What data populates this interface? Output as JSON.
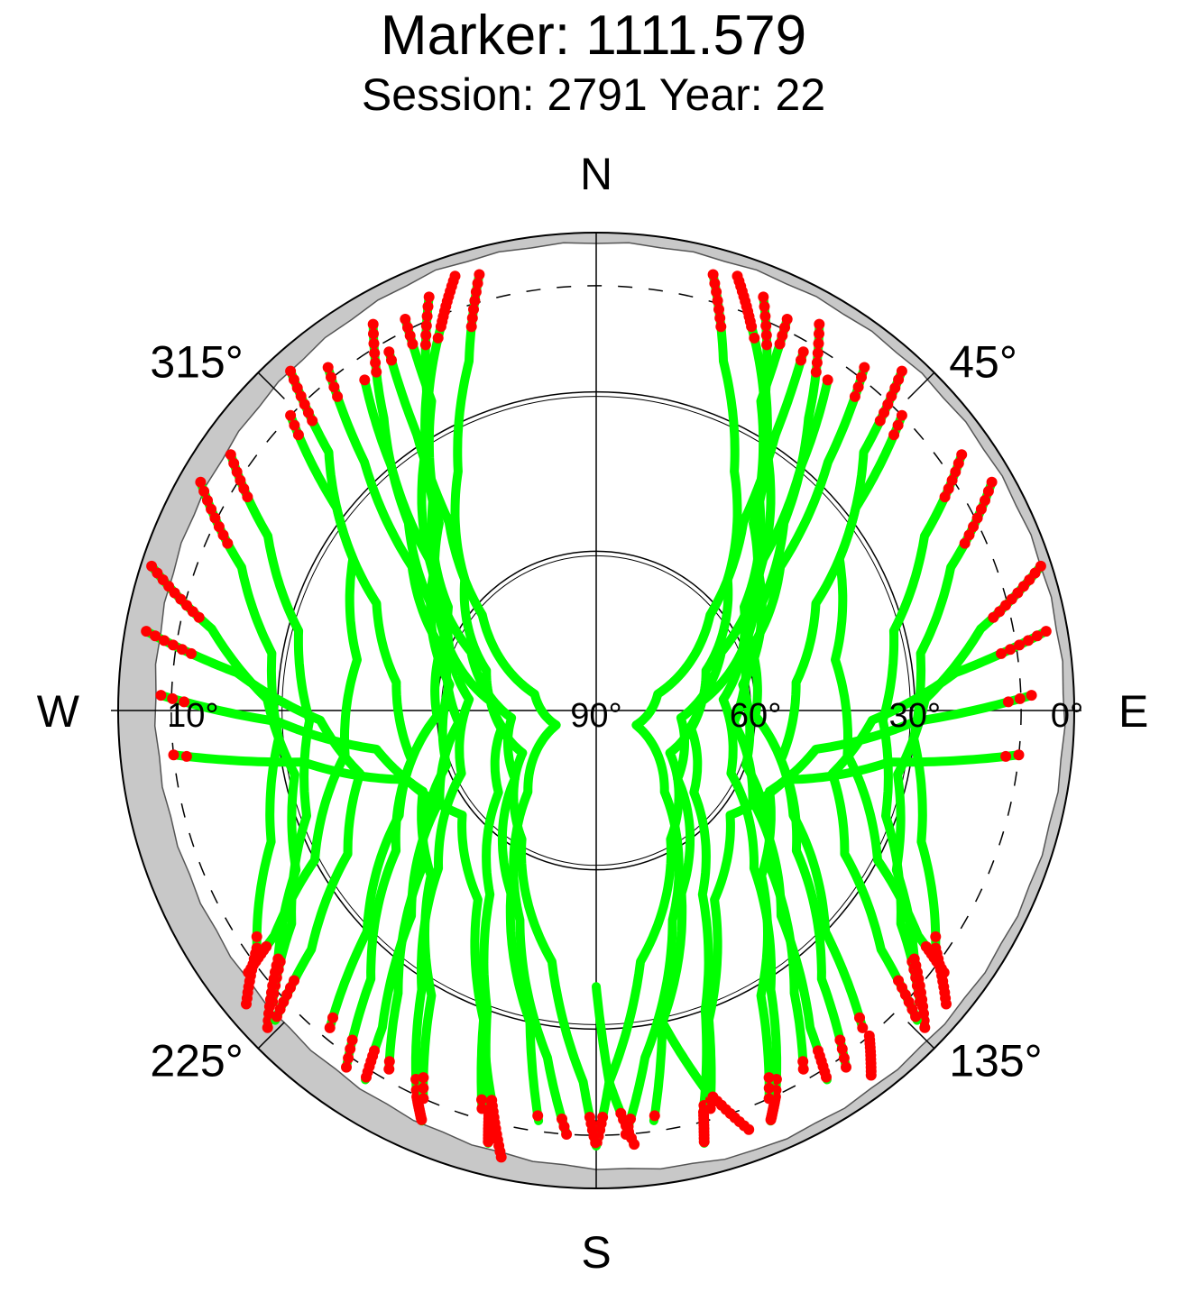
{
  "chart_data": {
    "type": "polar-skyplot",
    "title": "Marker: 1111.579",
    "subtitle": "Session: 2791 Year: 22",
    "cardinals": {
      "north": "N",
      "south": "S",
      "east": "E",
      "west": "W"
    },
    "azimuth_labels": [
      {
        "azimuth": 45,
        "text": "45°"
      },
      {
        "azimuth": 135,
        "text": "135°"
      },
      {
        "azimuth": 225,
        "text": "225°"
      },
      {
        "azimuth": 315,
        "text": "315°"
      }
    ],
    "elevation_labels": [
      {
        "elevation": 0,
        "text": "0°"
      },
      {
        "elevation": 30,
        "text": "30°"
      },
      {
        "elevation": 60,
        "text": "60°"
      },
      {
        "elevation": 90,
        "text": "90°"
      },
      {
        "elevation": 10,
        "text": "10°"
      }
    ],
    "elevation_circles": [
      30,
      60
    ],
    "cutoff_elevation": 10,
    "colors": {
      "track": "#00ff00",
      "low": "#ff0000",
      "mask": "#c8c8c8",
      "axis": "#000000"
    },
    "series": [
      {
        "points": [
          [
            15,
            5
          ],
          [
            20,
            20
          ],
          [
            30,
            38
          ],
          [
            45,
            55
          ],
          [
            70,
            68
          ],
          [
            100,
            72
          ],
          [
            130,
            66
          ],
          [
            150,
            50
          ],
          [
            160,
            30
          ],
          [
            165,
            12
          ],
          [
            166,
            6
          ]
        ]
      },
      {
        "points": [
          [
            22,
            6
          ],
          [
            28,
            22
          ],
          [
            38,
            40
          ],
          [
            55,
            56
          ],
          [
            85,
            66
          ],
          [
            115,
            62
          ],
          [
            135,
            48
          ],
          [
            148,
            28
          ],
          [
            155,
            10
          ],
          [
            157,
            6
          ]
        ]
      },
      {
        "points": [
          [
            30,
            6
          ],
          [
            36,
            22
          ],
          [
            45,
            40
          ],
          [
            60,
            56
          ],
          [
            85,
            70
          ],
          [
            120,
            74
          ],
          [
            150,
            62
          ],
          [
            170,
            42
          ],
          [
            178,
            20
          ],
          [
            180,
            8
          ]
        ]
      },
      {
        "points": [
          [
            38,
            8
          ],
          [
            43,
            26
          ],
          [
            52,
            46
          ],
          [
            70,
            60
          ],
          [
            95,
            64
          ],
          [
            120,
            56
          ],
          [
            138,
            38
          ],
          [
            146,
            18
          ],
          [
            148,
            8
          ]
        ]
      },
      {
        "points": [
          [
            46,
            10
          ],
          [
            52,
            28
          ],
          [
            64,
            44
          ],
          [
            82,
            52
          ],
          [
            105,
            54
          ],
          [
            125,
            44
          ],
          [
            140,
            24
          ],
          [
            145,
            8
          ]
        ]
      },
      {
        "points": [
          [
            55,
            6
          ],
          [
            62,
            20
          ],
          [
            75,
            32
          ],
          [
            92,
            36
          ],
          [
            110,
            32
          ],
          [
            125,
            20
          ],
          [
            132,
            8
          ]
        ]
      },
      {
        "points": [
          [
            60,
            4
          ],
          [
            68,
            18
          ],
          [
            80,
            28
          ],
          [
            95,
            30
          ],
          [
            112,
            24
          ],
          [
            125,
            12
          ],
          [
            130,
            4
          ]
        ]
      },
      {
        "points": [
          [
            72,
            2
          ],
          [
            78,
            16
          ],
          [
            88,
            28
          ],
          [
            102,
            32
          ],
          [
            118,
            26
          ],
          [
            128,
            14
          ],
          [
            134,
            4
          ]
        ]
      },
      {
        "points": [
          [
            80,
            4
          ],
          [
            84,
            22
          ],
          [
            92,
            38
          ],
          [
            105,
            44
          ],
          [
            120,
            36
          ],
          [
            130,
            20
          ],
          [
            134,
            6
          ]
        ]
      },
      {
        "points": [
          [
            88,
            8
          ],
          [
            92,
            30
          ],
          [
            100,
            48
          ],
          [
            115,
            54
          ],
          [
            135,
            46
          ],
          [
            150,
            28
          ],
          [
            156,
            10
          ]
        ]
      },
      {
        "points": [
          [
            96,
            10
          ],
          [
            100,
            34
          ],
          [
            110,
            52
          ],
          [
            128,
            58
          ],
          [
            148,
            48
          ],
          [
            160,
            28
          ],
          [
            164,
            12
          ]
        ]
      },
      {
        "points": [
          [
            30,
            12
          ],
          [
            33,
            28
          ],
          [
            38,
            45
          ],
          [
            50,
            62
          ],
          [
            75,
            78
          ],
          [
            110,
            82
          ],
          [
            140,
            70
          ],
          [
            160,
            48
          ],
          [
            172,
            24
          ],
          [
            176,
            10
          ]
        ]
      },
      {
        "points": [
          [
            35,
            14
          ],
          [
            40,
            30
          ],
          [
            48,
            48
          ],
          [
            65,
            64
          ],
          [
            95,
            74
          ],
          [
            130,
            70
          ],
          [
            155,
            52
          ],
          [
            168,
            30
          ],
          [
            172,
            12
          ]
        ]
      },
      {
        "points": [
          [
            18,
            4
          ],
          [
            22,
            12
          ],
          [
            32,
            30
          ],
          [
            50,
            50
          ],
          [
            80,
            62
          ],
          [
            110,
            60
          ],
          [
            132,
            46
          ],
          [
            145,
            25
          ],
          [
            150,
            12
          ]
        ]
      },
      {
        "points": [
          [
            42,
            4
          ],
          [
            46,
            20
          ],
          [
            58,
            36
          ],
          [
            78,
            44
          ],
          [
            100,
            42
          ],
          [
            118,
            30
          ],
          [
            125,
            16
          ],
          [
            127,
            8
          ]
        ]
      },
      {
        "points": [
          [
            26,
            8
          ],
          [
            28,
            24
          ],
          [
            40,
            44
          ],
          [
            62,
            58
          ],
          [
            92,
            60
          ],
          [
            118,
            48
          ],
          [
            134,
            30
          ],
          [
            140,
            12
          ]
        ]
      },
      {
        "points": [
          [
            345,
            5
          ],
          [
            340,
            20
          ],
          [
            330,
            38
          ],
          [
            315,
            55
          ],
          [
            290,
            68
          ],
          [
            260,
            72
          ],
          [
            230,
            66
          ],
          [
            210,
            50
          ],
          [
            200,
            30
          ],
          [
            195,
            12
          ],
          [
            194,
            6
          ]
        ]
      },
      {
        "points": [
          [
            338,
            6
          ],
          [
            332,
            22
          ],
          [
            322,
            40
          ],
          [
            305,
            56
          ],
          [
            275,
            66
          ],
          [
            245,
            62
          ],
          [
            225,
            48
          ],
          [
            212,
            28
          ],
          [
            205,
            10
          ],
          [
            203,
            6
          ]
        ]
      },
      {
        "points": [
          [
            330,
            6
          ],
          [
            324,
            22
          ],
          [
            315,
            40
          ],
          [
            300,
            56
          ],
          [
            275,
            70
          ],
          [
            240,
            74
          ],
          [
            210,
            62
          ],
          [
            190,
            42
          ],
          [
            182,
            20
          ],
          [
            180,
            8
          ]
        ]
      },
      {
        "points": [
          [
            322,
            8
          ],
          [
            317,
            26
          ],
          [
            308,
            46
          ],
          [
            290,
            60
          ],
          [
            265,
            64
          ],
          [
            240,
            56
          ],
          [
            222,
            38
          ],
          [
            214,
            18
          ],
          [
            212,
            8
          ]
        ]
      },
      {
        "points": [
          [
            314,
            10
          ],
          [
            308,
            28
          ],
          [
            296,
            44
          ],
          [
            278,
            52
          ],
          [
            255,
            54
          ],
          [
            235,
            44
          ],
          [
            220,
            24
          ],
          [
            215,
            8
          ]
        ]
      },
      {
        "points": [
          [
            305,
            6
          ],
          [
            298,
            20
          ],
          [
            285,
            32
          ],
          [
            268,
            36
          ],
          [
            250,
            32
          ],
          [
            235,
            20
          ],
          [
            228,
            8
          ]
        ]
      },
      {
        "points": [
          [
            300,
            4
          ],
          [
            292,
            18
          ],
          [
            280,
            28
          ],
          [
            265,
            30
          ],
          [
            248,
            24
          ],
          [
            235,
            12
          ],
          [
            230,
            4
          ]
        ]
      },
      {
        "points": [
          [
            288,
            2
          ],
          [
            282,
            16
          ],
          [
            272,
            28
          ],
          [
            258,
            32
          ],
          [
            242,
            26
          ],
          [
            232,
            14
          ],
          [
            226,
            4
          ]
        ]
      },
      {
        "points": [
          [
            280,
            4
          ],
          [
            276,
            22
          ],
          [
            268,
            38
          ],
          [
            255,
            44
          ],
          [
            240,
            36
          ],
          [
            230,
            20
          ],
          [
            226,
            6
          ]
        ]
      },
      {
        "points": [
          [
            272,
            8
          ],
          [
            268,
            30
          ],
          [
            260,
            48
          ],
          [
            245,
            54
          ],
          [
            225,
            46
          ],
          [
            210,
            28
          ],
          [
            204,
            10
          ]
        ]
      },
      {
        "points": [
          [
            264,
            10
          ],
          [
            260,
            34
          ],
          [
            250,
            52
          ],
          [
            232,
            58
          ],
          [
            212,
            48
          ],
          [
            200,
            28
          ],
          [
            196,
            12
          ]
        ]
      },
      {
        "points": [
          [
            330,
            12
          ],
          [
            327,
            28
          ],
          [
            322,
            45
          ],
          [
            310,
            62
          ],
          [
            285,
            78
          ],
          [
            250,
            82
          ],
          [
            220,
            70
          ],
          [
            200,
            48
          ],
          [
            188,
            24
          ],
          [
            184,
            10
          ]
        ]
      },
      {
        "points": [
          [
            325,
            14
          ],
          [
            320,
            30
          ],
          [
            312,
            48
          ],
          [
            295,
            64
          ],
          [
            265,
            74
          ],
          [
            230,
            70
          ],
          [
            205,
            52
          ],
          [
            192,
            30
          ],
          [
            188,
            12
          ]
        ]
      },
      {
        "points": [
          [
            342,
            4
          ],
          [
            338,
            12
          ],
          [
            328,
            30
          ],
          [
            310,
            50
          ],
          [
            280,
            62
          ],
          [
            250,
            60
          ],
          [
            228,
            46
          ],
          [
            215,
            25
          ],
          [
            210,
            12
          ]
        ]
      },
      {
        "points": [
          [
            318,
            4
          ],
          [
            314,
            20
          ],
          [
            302,
            36
          ],
          [
            282,
            44
          ],
          [
            260,
            42
          ],
          [
            242,
            30
          ],
          [
            235,
            16
          ],
          [
            233,
            8
          ]
        ]
      },
      {
        "points": [
          [
            334,
            8
          ],
          [
            332,
            24
          ],
          [
            320,
            44
          ],
          [
            298,
            58
          ],
          [
            268,
            60
          ],
          [
            242,
            48
          ],
          [
            226,
            30
          ],
          [
            220,
            12
          ]
        ]
      },
      {
        "points": [
          [
            180,
            38
          ],
          [
            178,
            20
          ],
          [
            175,
            8
          ]
        ]
      },
      {
        "points": [
          [
            168,
            30
          ],
          [
            164,
            16
          ],
          [
            160,
            6
          ]
        ]
      },
      {
        "points": [
          [
            200,
            28
          ],
          [
            195,
            14
          ],
          [
            192,
            4
          ]
        ]
      },
      {
        "points": [
          [
            140,
            10
          ],
          [
            143,
            4
          ]
        ]
      }
    ]
  }
}
